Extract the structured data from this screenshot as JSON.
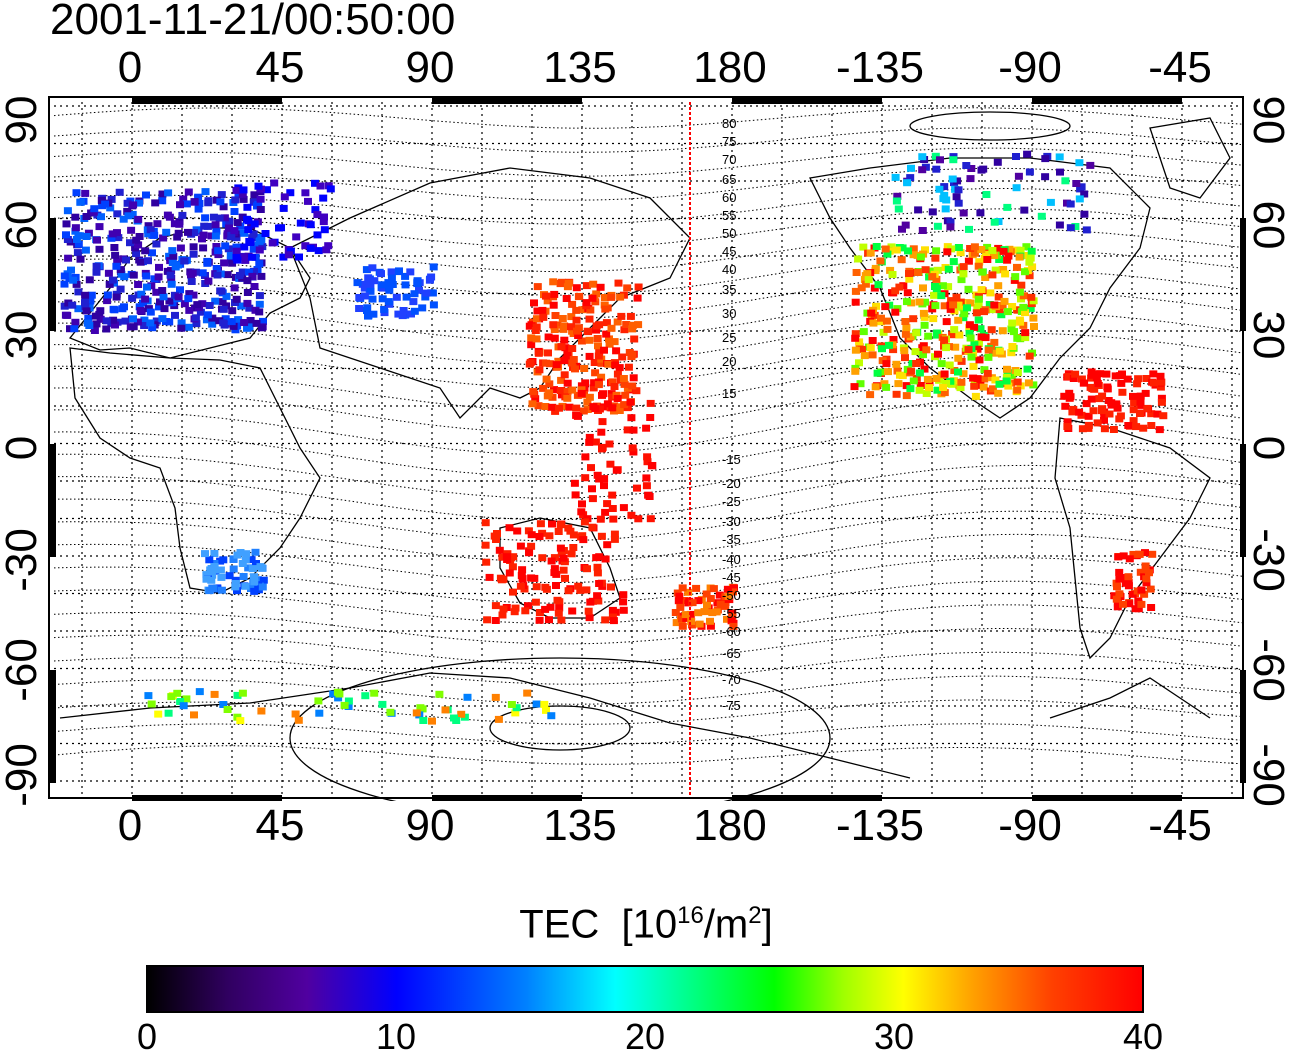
{
  "timestamp": "2001-11-21/00:50:00",
  "top_ticks": [
    "0",
    "45",
    "90",
    "135",
    "180",
    "-135",
    "-90",
    "-45"
  ],
  "bottom_ticks": [
    "0",
    "45",
    "90",
    "135",
    "180",
    "-135",
    "-90",
    "-45"
  ],
  "left_ticks": [
    "90",
    "60",
    "30",
    "0",
    "-30",
    "-60",
    "-90"
  ],
  "right_ticks": [
    "90",
    "60",
    "30",
    "0",
    "-30",
    "-60",
    "-90"
  ],
  "contour_labels": [
    "80",
    "75",
    "70",
    "65",
    "60",
    "55",
    "50",
    "45",
    "40",
    "35",
    "30",
    "25",
    "20",
    "15",
    "-15",
    "-20",
    "-25",
    "-30",
    "-35",
    "-40",
    "-45",
    "-50",
    "-55",
    "-60",
    "-65",
    "-70",
    "-75"
  ],
  "colorbar": {
    "title_main": "TEC",
    "title_units_prefix": "[10",
    "title_units_exp": "16",
    "title_units_mid": "/m",
    "title_units_exp2": "2",
    "title_units_suffix": "]",
    "ticks": [
      "0",
      "10",
      "20",
      "30",
      "40"
    ],
    "range": [
      0,
      40
    ]
  },
  "colors": {
    "frame": "#000000",
    "meridian_marker": "#ff0000"
  }
}
